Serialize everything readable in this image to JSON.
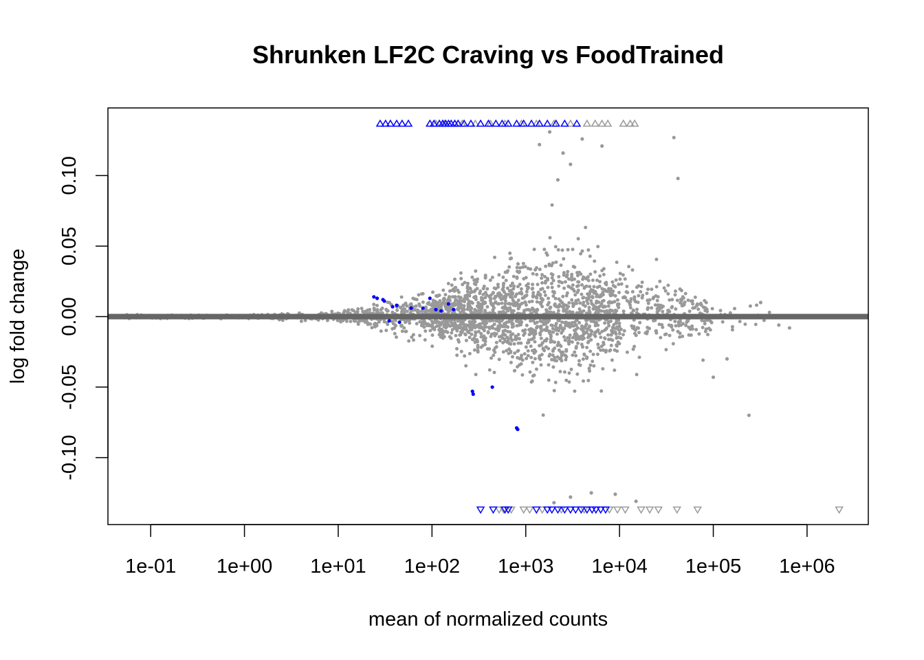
{
  "chart_data": {
    "type": "scatter",
    "title": "Shrunken LF2C Craving vs FoodTrained",
    "xlabel": "mean of normalized counts",
    "ylabel": "log fold change",
    "x_scale": "log10",
    "xlim": [
      0.035,
      4500000
    ],
    "ylim": [
      -0.1475,
      0.148
    ],
    "x_ticks": [
      0.1,
      1,
      10,
      100,
      1000,
      10000,
      100000,
      1000000
    ],
    "x_tick_labels": [
      "1e-01",
      "1e+00",
      "1e+01",
      "1e+02",
      "1e+03",
      "1e+04",
      "1e+05",
      "1e+06"
    ],
    "y_ticks": [
      -0.1,
      -0.05,
      0.0,
      0.05,
      0.1
    ],
    "y_tick_labels": [
      "-0.10",
      "-0.05",
      "0.00",
      "0.05",
      "0.10"
    ],
    "hline": {
      "y": 0,
      "color": "#666666"
    },
    "grid": false,
    "legend": "none",
    "colors": {
      "non_significant": "#999999",
      "significant": "#0000ff",
      "zero_line": "#666666"
    },
    "significant_points": [
      {
        "x": 24,
        "y": 0.014
      },
      {
        "x": 26,
        "y": 0.013
      },
      {
        "x": 30,
        "y": 0.012
      },
      {
        "x": 31,
        "y": 0.011
      },
      {
        "x": 38,
        "y": 0.007
      },
      {
        "x": 42,
        "y": 0.008
      },
      {
        "x": 60,
        "y": 0.006
      },
      {
        "x": 80,
        "y": 0.006
      },
      {
        "x": 95,
        "y": 0.013
      },
      {
        "x": 110,
        "y": 0.005
      },
      {
        "x": 125,
        "y": 0.004
      },
      {
        "x": 150,
        "y": 0.009
      },
      {
        "x": 170,
        "y": 0.005
      },
      {
        "x": 35,
        "y": -0.003
      },
      {
        "x": 45,
        "y": -0.004
      },
      {
        "x": 270,
        "y": -0.053
      },
      {
        "x": 275,
        "y": -0.055
      },
      {
        "x": 440,
        "y": -0.05
      },
      {
        "x": 800,
        "y": -0.079
      },
      {
        "x": 820,
        "y": -0.08
      }
    ],
    "gray_outliers": [
      {
        "x": 1400,
        "y": 0.122
      },
      {
        "x": 1800,
        "y": 0.131
      },
      {
        "x": 2500,
        "y": 0.116
      },
      {
        "x": 4000,
        "y": 0.126
      },
      {
        "x": 6500,
        "y": 0.121
      },
      {
        "x": 38000,
        "y": 0.127
      },
      {
        "x": 42000,
        "y": 0.098
      },
      {
        "x": 3000,
        "y": 0.108
      },
      {
        "x": 2200,
        "y": 0.097
      },
      {
        "x": 320000,
        "y": 0.01
      },
      {
        "x": 500000,
        "y": -0.006
      },
      {
        "x": 650000,
        "y": -0.008
      },
      {
        "x": 240000,
        "y": -0.07
      },
      {
        "x": 100000,
        "y": -0.043
      },
      {
        "x": 140000,
        "y": -0.03
      },
      {
        "x": 15000,
        "y": -0.131
      },
      {
        "x": 2000,
        "y": -0.132
      },
      {
        "x": 3000,
        "y": -0.128
      },
      {
        "x": 5000,
        "y": -0.125
      },
      {
        "x": 9000,
        "y": -0.126
      }
    ],
    "top_clipped": {
      "y": 0.137,
      "blue_x": [
        28,
        32,
        36,
        42,
        48,
        56,
        95,
        105,
        120,
        130,
        140,
        150,
        160,
        175,
        190,
        220,
        260,
        330,
        400,
        480,
        560,
        650,
        800,
        950,
        1150,
        1400,
        1700,
        2100,
        2600,
        3500
      ],
      "gray_x": [
        110,
        135,
        175,
        210,
        290,
        420,
        600,
        900,
        1300,
        2000,
        3000,
        4500,
        5500,
        6500,
        7500,
        11000,
        13000,
        14500
      ]
    },
    "bottom_clipped": {
      "y": -0.137,
      "blue_x": [
        330,
        450,
        600,
        650,
        1300,
        1700,
        1900,
        2200,
        2600,
        3000,
        3400,
        3900,
        4500,
        5100,
        5600,
        6300,
        7100
      ],
      "gray_x": [
        520,
        580,
        700,
        950,
        1100,
        1500,
        2400,
        4200,
        7800,
        9500,
        11500,
        17000,
        21000,
        26000,
        41000,
        68000,
        2200000
      ]
    }
  }
}
